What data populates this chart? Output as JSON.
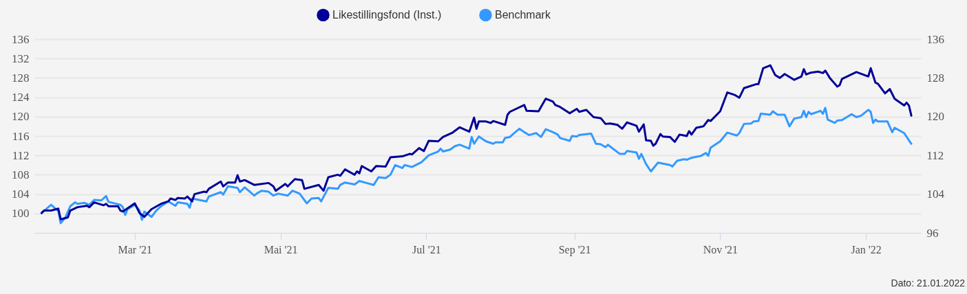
{
  "chart_data": {
    "type": "line",
    "xlim": [
      "2021-01-18",
      "2022-01-24"
    ],
    "xticks": [
      {
        "value": "2021-03-01",
        "label": "Mar '21"
      },
      {
        "value": "2021-05-01",
        "label": "Mai '21"
      },
      {
        "value": "2021-07-01",
        "label": "Jul '21"
      },
      {
        "value": "2021-09-01",
        "label": "Sep '21"
      },
      {
        "value": "2021-11-01",
        "label": "Nov '21"
      },
      {
        "value": "2022-01-01",
        "label": "Jan '22"
      }
    ],
    "ylim": [
      96,
      136
    ],
    "yticks": [
      100,
      104,
      108,
      112,
      116,
      120,
      124,
      128,
      132,
      136
    ],
    "y2lim": [
      96,
      136
    ],
    "y2ticks": [
      96,
      104,
      112,
      120,
      128,
      136
    ],
    "grid": "y",
    "legend": "top",
    "marker": "none",
    "line_style": "solid",
    "annotations": [
      "Dato: 21.01.2022"
    ],
    "series": [
      {
        "name": "Likestillingsfond (Inst.)",
        "color": "#000099",
        "x": [
          "2021-01-21",
          "2021-01-22",
          "2021-01-25",
          "2021-01-28",
          "2021-01-29",
          "2021-02-01",
          "2021-02-02",
          "2021-02-05",
          "2021-02-09",
          "2021-02-10",
          "2021-02-12",
          "2021-02-16",
          "2021-02-17",
          "2021-02-18",
          "2021-02-22",
          "2021-02-23",
          "2021-02-24",
          "2021-03-01",
          "2021-03-03",
          "2021-03-05",
          "2021-03-08",
          "2021-03-12",
          "2021-03-15",
          "2021-03-16",
          "2021-03-18",
          "2021-03-19",
          "2021-03-22",
          "2021-03-23",
          "2021-03-25",
          "2021-03-26",
          "2021-03-30",
          "2021-03-31",
          "2021-04-01",
          "2021-04-06",
          "2021-04-07",
          "2021-04-09",
          "2021-04-12",
          "2021-04-13",
          "2021-04-14",
          "2021-04-16",
          "2021-04-20",
          "2021-04-26",
          "2021-04-28",
          "2021-04-29",
          "2021-05-03",
          "2021-05-04",
          "2021-05-07",
          "2021-05-10",
          "2021-05-11",
          "2021-05-17",
          "2021-05-19",
          "2021-05-21",
          "2021-05-25",
          "2021-05-26",
          "2021-05-28",
          "2021-06-01",
          "2021-06-02",
          "2021-06-03",
          "2021-06-04",
          "2021-06-08",
          "2021-06-10",
          "2021-06-14",
          "2021-06-16",
          "2021-06-21",
          "2021-06-24",
          "2021-06-25",
          "2021-06-28",
          "2021-06-30",
          "2021-07-02",
          "2021-07-06",
          "2021-07-08",
          "2021-07-12",
          "2021-07-15",
          "2021-07-19",
          "2021-07-21",
          "2021-07-22",
          "2021-07-23",
          "2021-07-26",
          "2021-07-28",
          "2021-07-29",
          "2021-08-03",
          "2021-08-04",
          "2021-08-05",
          "2021-08-11",
          "2021-08-12",
          "2021-08-17",
          "2021-08-18",
          "2021-08-20",
          "2021-08-23",
          "2021-08-24",
          "2021-08-26",
          "2021-08-30",
          "2021-09-02",
          "2021-09-03",
          "2021-09-06",
          "2021-09-09",
          "2021-09-12",
          "2021-09-14",
          "2021-09-16",
          "2021-09-19",
          "2021-09-21",
          "2021-09-23",
          "2021-09-27",
          "2021-09-28",
          "2021-09-30",
          "2021-10-01",
          "2021-10-03",
          "2021-10-04",
          "2021-10-05",
          "2021-10-07",
          "2021-10-08",
          "2021-10-11",
          "2021-10-13",
          "2021-10-15",
          "2021-10-18",
          "2021-10-19",
          "2021-10-20",
          "2021-10-22",
          "2021-10-25",
          "2021-10-27",
          "2021-10-28",
          "2021-11-01",
          "2021-11-04",
          "2021-11-07",
          "2021-11-09",
          "2021-11-11",
          "2021-11-16",
          "2021-11-17",
          "2021-11-19",
          "2021-11-22",
          "2021-11-24",
          "2021-11-26",
          "2021-11-28",
          "2021-12-02",
          "2021-12-05",
          "2021-12-06",
          "2021-12-07",
          "2021-12-09",
          "2021-12-12",
          "2021-12-14",
          "2021-12-15",
          "2021-12-17",
          "2021-12-20",
          "2021-12-21",
          "2021-12-22",
          "2021-12-28",
          "2022-01-02",
          "2022-01-03",
          "2022-01-05",
          "2022-01-06",
          "2022-01-09",
          "2022-01-11",
          "2022-01-13",
          "2022-01-17",
          "2022-01-18",
          "2022-01-19",
          "2022-01-20"
        ],
        "values": [
          100.1,
          100.6,
          100.6,
          101.0,
          98.8,
          99.2,
          100.6,
          101.3,
          101.6,
          101.3,
          102.3,
          101.7,
          102.0,
          101.5,
          101.5,
          100.6,
          100.4,
          102.1,
          100.1,
          99.3,
          100.9,
          102.0,
          102.5,
          103.1,
          102.8,
          103.2,
          103.1,
          103.5,
          102.5,
          104.0,
          104.5,
          104.4,
          105.1,
          106.6,
          105.6,
          106.4,
          106.4,
          107.9,
          106.6,
          106.9,
          105.9,
          106.3,
          105.6,
          104.7,
          106.1,
          105.6,
          107.1,
          106.9,
          105.1,
          105.9,
          104.7,
          107.5,
          108.0,
          107.8,
          109.1,
          108.0,
          108.7,
          108.3,
          109.8,
          108.7,
          109.8,
          109.7,
          111.6,
          111.8,
          112.3,
          112.2,
          113.5,
          112.9,
          115.0,
          114.9,
          115.8,
          116.7,
          117.8,
          116.9,
          119.8,
          117.5,
          119.0,
          119.0,
          118.7,
          119.1,
          118.3,
          120.4,
          121.0,
          122.4,
          121.2,
          121.1,
          122.0,
          123.7,
          123.1,
          122.4,
          122.0,
          120.7,
          121.6,
          121.0,
          121.4,
          119.9,
          119.7,
          118.5,
          118.6,
          118.3,
          117.5,
          118.8,
          118.1,
          116.9,
          118.4,
          115.1,
          115.0,
          114.0,
          114.4,
          116.4,
          115.9,
          115.8,
          114.8,
          116.3,
          116.0,
          117.0,
          116.3,
          117.7,
          118.0,
          119.3,
          119.1,
          121.1,
          125.0,
          124.5,
          123.9,
          125.9,
          126.7,
          126.7,
          130.0,
          130.6,
          128.6,
          128.0,
          128.8,
          127.6,
          128.3,
          129.8,
          128.7,
          129.1,
          129.3,
          129.0,
          129.5,
          127.9,
          126.2,
          126.5,
          127.8,
          129.2,
          128.3,
          130.0,
          127.0,
          126.8,
          124.8,
          125.7,
          123.7,
          122.3,
          122.9,
          122.3,
          120.2
        ]
      },
      {
        "name": "Benchmark",
        "color": "#3399ff",
        "x": [
          "2021-01-21",
          "2021-01-25",
          "2021-01-27",
          "2021-01-28",
          "2021-01-29",
          "2021-01-31",
          "2021-02-02",
          "2021-02-04",
          "2021-02-05",
          "2021-02-08",
          "2021-02-10",
          "2021-02-12",
          "2021-02-15",
          "2021-02-17",
          "2021-02-18",
          "2021-02-23",
          "2021-02-24",
          "2021-02-25",
          "2021-02-26",
          "2021-03-01",
          "2021-03-03",
          "2021-03-04",
          "2021-03-05",
          "2021-03-08",
          "2021-03-10",
          "2021-03-12",
          "2021-03-15",
          "2021-03-18",
          "2021-03-19",
          "2021-03-23",
          "2021-03-24",
          "2021-03-25",
          "2021-03-31",
          "2021-04-01",
          "2021-04-06",
          "2021-04-07",
          "2021-04-09",
          "2021-04-13",
          "2021-04-14",
          "2021-04-16",
          "2021-04-20",
          "2021-04-21",
          "2021-04-23",
          "2021-04-26",
          "2021-04-28",
          "2021-04-30",
          "2021-05-04",
          "2021-05-06",
          "2021-05-09",
          "2021-05-12",
          "2021-05-14",
          "2021-05-17",
          "2021-05-18",
          "2021-05-21",
          "2021-05-25",
          "2021-05-26",
          "2021-05-28",
          "2021-06-01",
          "2021-06-03",
          "2021-06-06",
          "2021-06-09",
          "2021-06-11",
          "2021-06-14",
          "2021-06-16",
          "2021-06-18",
          "2021-06-21",
          "2021-06-22",
          "2021-06-25",
          "2021-06-29",
          "2021-07-02",
          "2021-07-06",
          "2021-07-07",
          "2021-07-08",
          "2021-07-11",
          "2021-07-13",
          "2021-07-15",
          "2021-07-19",
          "2021-07-20",
          "2021-07-21",
          "2021-07-23",
          "2021-07-26",
          "2021-07-29",
          "2021-07-30",
          "2021-08-02",
          "2021-08-03",
          "2021-08-05",
          "2021-08-07",
          "2021-08-09",
          "2021-08-11",
          "2021-08-13",
          "2021-08-16",
          "2021-08-18",
          "2021-08-20",
          "2021-08-23",
          "2021-08-25",
          "2021-08-26",
          "2021-08-30",
          "2021-08-31",
          "2021-09-02",
          "2021-09-03",
          "2021-09-08",
          "2021-09-10",
          "2021-09-12",
          "2021-09-14",
          "2021-09-15",
          "2021-09-20",
          "2021-09-22",
          "2021-09-23",
          "2021-09-27",
          "2021-09-28",
          "2021-09-29",
          "2021-10-01",
          "2021-10-03",
          "2021-10-06",
          "2021-10-11",
          "2021-10-12",
          "2021-10-14",
          "2021-10-17",
          "2021-10-18",
          "2021-10-20",
          "2021-10-24",
          "2021-10-26",
          "2021-10-27",
          "2021-10-28",
          "2021-11-01",
          "2021-11-04",
          "2021-11-08",
          "2021-11-09",
          "2021-11-11",
          "2021-11-14",
          "2021-11-15",
          "2021-11-17",
          "2021-11-18",
          "2021-11-22",
          "2021-11-23",
          "2021-11-25",
          "2021-11-28",
          "2021-11-30",
          "2021-12-02",
          "2021-12-05",
          "2021-12-06",
          "2021-12-07",
          "2021-12-08",
          "2021-12-09",
          "2021-12-13",
          "2021-12-14",
          "2021-12-15",
          "2021-12-16",
          "2021-12-19",
          "2021-12-20",
          "2021-12-22",
          "2021-12-26",
          "2021-12-28",
          "2021-12-30",
          "2022-01-02",
          "2022-01-03",
          "2022-01-04",
          "2022-01-05",
          "2022-01-06",
          "2022-01-10",
          "2022-01-12",
          "2022-01-13",
          "2022-01-17",
          "2022-01-19",
          "2022-01-20"
        ],
        "values": [
          100.1,
          101.8,
          100.9,
          100.5,
          98.0,
          99.2,
          101.5,
          102.3,
          102.0,
          102.2,
          101.8,
          102.8,
          102.7,
          103.6,
          102.4,
          101.8,
          101.3,
          99.7,
          100.9,
          101.8,
          100.6,
          98.7,
          100.4,
          99.3,
          100.6,
          101.5,
          102.5,
          101.6,
          102.3,
          102.0,
          101.2,
          103.1,
          102.5,
          103.5,
          104.4,
          103.9,
          105.6,
          105.3,
          104.4,
          105.4,
          103.7,
          104.1,
          104.7,
          104.5,
          103.7,
          104.1,
          103.7,
          104.7,
          104.1,
          102.1,
          103.1,
          103.2,
          102.5,
          105.3,
          105.1,
          105.9,
          106.4,
          106.0,
          106.7,
          106.3,
          105.9,
          107.5,
          107.3,
          108.0,
          110.0,
          109.4,
          110.0,
          109.6,
          110.6,
          112.0,
          112.8,
          113.4,
          112.8,
          113.2,
          113.9,
          114.2,
          113.4,
          115.8,
          114.4,
          115.9,
          114.9,
          114.4,
          114.7,
          114.7,
          115.6,
          115.8,
          116.7,
          117.5,
          116.8,
          116.2,
          116.6,
          115.8,
          117.4,
          116.8,
          116.3,
          115.6,
          115.0,
          116.0,
          115.9,
          116.2,
          116.5,
          114.4,
          114.3,
          113.7,
          114.2,
          112.3,
          112.3,
          112.9,
          112.6,
          111.3,
          112.3,
          110.2,
          108.7,
          110.5,
          110.0,
          109.7,
          110.9,
          111.2,
          111.1,
          111.5,
          111.9,
          112.5,
          111.9,
          113.6,
          114.9,
          116.7,
          116.1,
          116.6,
          118.5,
          118.6,
          119.0,
          119.1,
          120.6,
          120.4,
          121.1,
          120.4,
          120.4,
          118.0,
          119.6,
          119.9,
          121.2,
          119.9,
          121.0,
          120.5,
          121.2,
          120.6,
          121.8,
          119.4,
          118.7,
          119.2,
          119.3,
          120.5,
          119.9,
          120.2,
          121.4,
          121.0,
          118.7,
          119.4,
          119.0,
          119.0,
          116.8,
          117.7,
          116.6,
          115.1,
          114.4
        ]
      }
    ]
  }
}
